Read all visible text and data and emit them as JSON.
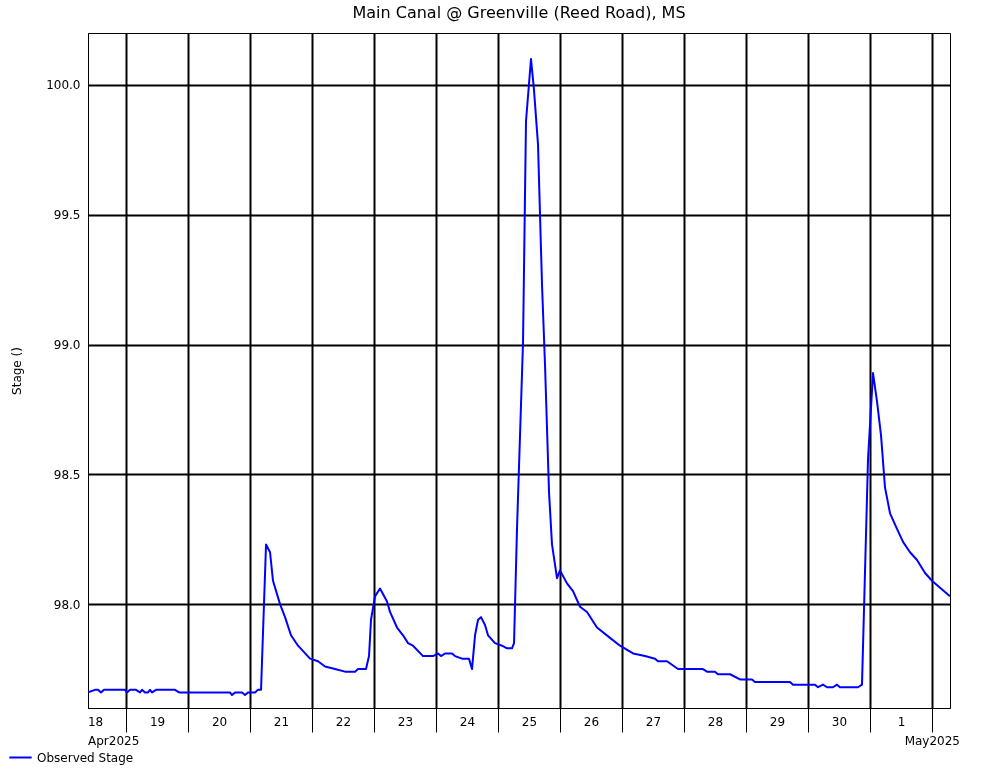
{
  "chart_data": {
    "type": "line",
    "title": "Main Canal @ Greenville (Reed Road), MS",
    "ylabel": "Stage ()",
    "xlim": [
      "2025-04-18T09:17",
      "2025-05-02T06:58"
    ],
    "xticks": [
      {
        "value": "2025-04-18T12:00",
        "label": "18"
      },
      {
        "value": "2025-04-19T00:00",
        "label": null
      },
      {
        "value": "2025-04-19T12:00",
        "label": "19"
      },
      {
        "value": "2025-04-20T00:00",
        "label": null
      },
      {
        "value": "2025-04-20T12:00",
        "label": "20"
      },
      {
        "value": "2025-04-21T00:00",
        "label": null
      },
      {
        "value": "2025-04-21T12:00",
        "label": "21"
      },
      {
        "value": "2025-04-22T00:00",
        "label": null
      },
      {
        "value": "2025-04-22T12:00",
        "label": "22"
      },
      {
        "value": "2025-04-23T00:00",
        "label": null
      },
      {
        "value": "2025-04-23T12:00",
        "label": "23"
      },
      {
        "value": "2025-04-24T00:00",
        "label": null
      },
      {
        "value": "2025-04-24T12:00",
        "label": "24"
      },
      {
        "value": "2025-04-25T00:00",
        "label": null
      },
      {
        "value": "2025-04-25T12:00",
        "label": "25"
      },
      {
        "value": "2025-04-26T00:00",
        "label": null
      },
      {
        "value": "2025-04-26T12:00",
        "label": "26"
      },
      {
        "value": "2025-04-27T00:00",
        "label": null
      },
      {
        "value": "2025-04-27T12:00",
        "label": "27"
      },
      {
        "value": "2025-04-28T00:00",
        "label": null
      },
      {
        "value": "2025-04-28T12:00",
        "label": "28"
      },
      {
        "value": "2025-04-29T00:00",
        "label": null
      },
      {
        "value": "2025-04-29T12:00",
        "label": "29"
      },
      {
        "value": "2025-04-30T00:00",
        "label": null
      },
      {
        "value": "2025-04-30T12:00",
        "label": "30"
      },
      {
        "value": "2025-05-01T00:00",
        "label": null
      },
      {
        "value": "2025-05-01T12:00",
        "label": "1"
      },
      {
        "value": "2025-05-02T00:00",
        "label": null
      }
    ],
    "ylim": [
      97.6,
      100.2
    ],
    "yticks": [
      {
        "value": 98,
        "label": "98.0"
      },
      {
        "value": 98.5,
        "label": "98.5"
      },
      {
        "value": 99,
        "label": "99.0"
      },
      {
        "value": 99.5,
        "label": "99.5"
      },
      {
        "value": 100,
        "label": "100.0"
      }
    ],
    "grid": true,
    "legend": "bottom left",
    "marker": "none",
    "line_style": "solid",
    "annotations": [
      "Apr2025",
      "May2025"
    ],
    "series": [
      {
        "name": "Observed Stage",
        "color": "#0000ff",
        "x": [
          "2025-04-18T09:17",
          "2025-04-18T12:00",
          "2025-04-18T13:10",
          "2025-04-18T14:19",
          "2025-04-18T15:29",
          "2025-04-18T23:37",
          "2025-04-19T00:23",
          "2025-04-19T01:33",
          "2025-04-19T03:52",
          "2025-04-19T05:25",
          "2025-04-19T06:12",
          "2025-04-19T07:21",
          "2025-04-19T08:31",
          "2025-04-19T09:17",
          "2025-04-19T10:04",
          "2025-04-19T11:37",
          "2025-04-19T18:58",
          "2025-04-19T20:31",
          "2025-04-20T16:15",
          "2025-04-20T17:02",
          "2025-04-20T18:12",
          "2025-04-20T20:54",
          "2025-04-20T22:04",
          "2025-04-20T23:14",
          "2025-04-21T01:56",
          "2025-04-21T03:06",
          "2025-04-21T04:16",
          "2025-04-21T06:12",
          "2025-04-21T07:45",
          "2025-04-21T08:54",
          "2025-04-21T11:37",
          "2025-04-21T13:33",
          "2025-04-21T15:52",
          "2025-04-21T18:35",
          "2025-04-21T23:14",
          "2025-04-22T02:19",
          "2025-04-22T05:02",
          "2025-04-22T08:54",
          "2025-04-22T12:46",
          "2025-04-22T16:39",
          "2025-04-22T17:48",
          "2025-04-22T20:54",
          "2025-04-22T22:04",
          "2025-04-22T22:50",
          "2025-04-23T00:23",
          "2025-04-23T02:19",
          "2025-04-23T05:02",
          "2025-04-23T06:12",
          "2025-04-23T08:54",
          "2025-04-23T11:14",
          "2025-04-23T13:10",
          "2025-04-23T15:06",
          "2025-04-23T18:58",
          "2025-04-23T21:41",
          "2025-04-23T22:51",
          "2025-04-24T00:47",
          "2025-04-24T01:56",
          "2025-04-24T03:29",
          "2025-04-24T06:12",
          "2025-04-24T07:21",
          "2025-04-24T10:04",
          "2025-04-24T12:46",
          "2025-04-24T13:56",
          "2025-04-24T15:06",
          "2025-04-24T16:16",
          "2025-04-24T17:25",
          "2025-04-24T18:58",
          "2025-04-24T20:08",
          "2025-04-24T22:50",
          "2025-04-25T01:33",
          "2025-04-25T03:29",
          "2025-04-25T05:25",
          "2025-04-25T06:12",
          "2025-04-25T07:21",
          "2025-04-25T09:41",
          "2025-04-25T10:50",
          "2025-04-25T12:46",
          "2025-04-25T13:56",
          "2025-04-25T15:29",
          "2025-04-25T17:02",
          "2025-04-25T18:12",
          "2025-04-25T19:45",
          "2025-04-25T20:54",
          "2025-04-25T22:50",
          "2025-04-26T00:00",
          "2025-04-26T02:42",
          "2025-04-26T05:02",
          "2025-04-26T07:45",
          "2025-04-26T10:27",
          "2025-04-26T14:19",
          "2025-04-26T19:21",
          "2025-04-26T23:14",
          "2025-04-27T04:16",
          "2025-04-27T08:54",
          "2025-04-27T12:47",
          "2025-04-27T13:56",
          "2025-04-27T17:25",
          "2025-04-27T21:41",
          "2025-04-28T07:21",
          "2025-04-28T08:54",
          "2025-04-28T12:00",
          "2025-04-28T13:10",
          "2025-04-28T17:49",
          "2025-04-28T21:41",
          "2025-04-29T02:19",
          "2025-04-29T03:29",
          "2025-04-29T17:02",
          "2025-04-29T18:11",
          "2025-04-30T02:43",
          "2025-04-30T03:52",
          "2025-04-30T05:48",
          "2025-04-30T07:21",
          "2025-04-30T09:41",
          "2025-04-30T11:14",
          "2025-04-30T12:23",
          "2025-04-30T19:21",
          "2025-04-30T20:54",
          "2025-04-30T23:14",
          "2025-05-01T01:10",
          "2025-05-01T02:43",
          "2025-05-01T04:16",
          "2025-05-01T05:48",
          "2025-05-01T07:45",
          "2025-05-01T10:27",
          "2025-05-01T12:47",
          "2025-05-01T15:29",
          "2025-05-01T18:12",
          "2025-05-01T21:18",
          "2025-05-02T00:00",
          "2025-05-02T02:19",
          "2025-05-02T06:58"
        ],
        "values": [
          97.66,
          97.67,
          97.67,
          97.66,
          97.67,
          97.67,
          97.66,
          97.67,
          97.67,
          97.66,
          97.67,
          97.66,
          97.66,
          97.67,
          97.66,
          97.67,
          97.67,
          97.66,
          97.66,
          97.65,
          97.66,
          97.66,
          97.65,
          97.66,
          97.66,
          97.67,
          97.67,
          98.23,
          98.2,
          98.09,
          98.0,
          97.95,
          97.88,
          97.84,
          97.79,
          97.78,
          97.76,
          97.75,
          97.74,
          97.74,
          97.75,
          97.75,
          97.8,
          97.94,
          98.03,
          98.06,
          98.01,
          97.97,
          97.91,
          97.88,
          97.85,
          97.84,
          97.8,
          97.8,
          97.8,
          97.81,
          97.8,
          97.81,
          97.81,
          97.8,
          97.79,
          97.79,
          97.75,
          97.88,
          97.94,
          97.95,
          97.92,
          97.88,
          97.85,
          97.84,
          97.83,
          97.83,
          97.85,
          98.29,
          99.01,
          99.86,
          100.1,
          99.98,
          99.77,
          99.23,
          98.92,
          98.43,
          98.23,
          98.1,
          98.13,
          98.08,
          98.05,
          97.99,
          97.97,
          97.91,
          97.87,
          97.84,
          97.81,
          97.8,
          97.79,
          97.78,
          97.78,
          97.75,
          97.75,
          97.74,
          97.74,
          97.73,
          97.73,
          97.71,
          97.71,
          97.7,
          97.7,
          97.69,
          97.69,
          97.68,
          97.69,
          97.68,
          97.68,
          97.69,
          97.68,
          97.68,
          97.69,
          98.56,
          98.89,
          98.78,
          98.65,
          98.45,
          98.35,
          98.29,
          98.24,
          98.2,
          98.17,
          98.12,
          98.09,
          98.07,
          98.03
        ]
      }
    ]
  }
}
